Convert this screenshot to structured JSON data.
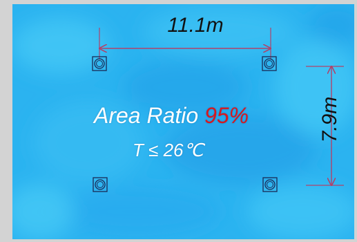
{
  "dimensions": {
    "width_label": "11.1m",
    "depth_label": "7.9m",
    "line_color": "#b0436b"
  },
  "result": {
    "label": "Area Ratio",
    "value": "95%",
    "value_color": "#d7181f",
    "condition": "T ≤ 26℃"
  },
  "field": {
    "base_color": "#2bb3f0",
    "light_color": "#43c9f6",
    "dark_color": "#1f9fe8"
  },
  "markers": {
    "count": 4,
    "icon": "air-outlet-icon"
  }
}
